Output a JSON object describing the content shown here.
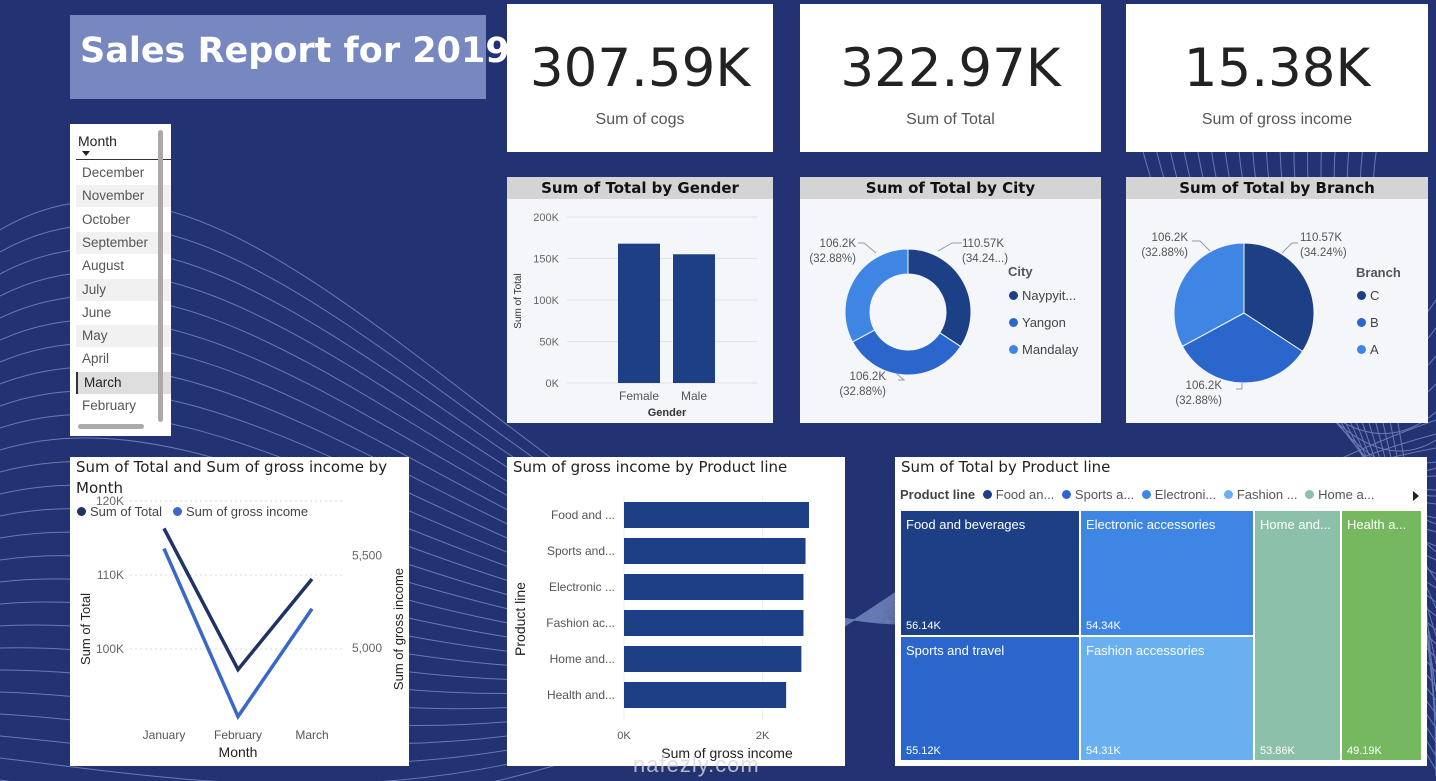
{
  "report": {
    "title": "Sales Report for 2019"
  },
  "kpis": [
    {
      "value": "307.59K",
      "label": "Sum of cogs"
    },
    {
      "value": "322.97K",
      "label": "Sum of Total"
    },
    {
      "value": "15.38K",
      "label": "Sum of gross income"
    }
  ],
  "slicer": {
    "header": "Month",
    "items": [
      "December",
      "November",
      "October",
      "September",
      "August",
      "July",
      "June",
      "May",
      "April",
      "March",
      "February"
    ],
    "selected": "March"
  },
  "gender_chart": {
    "title": "Sum of Total by Gender",
    "ylabel": "Sum of Total",
    "xlabel": "Gender",
    "y_ticks": [
      "200K",
      "150K",
      "100K",
      "50K",
      "0K"
    ],
    "categories": [
      "Female",
      "Male"
    ]
  },
  "city_chart": {
    "title": "Sum of Total by City",
    "legend_title": "City",
    "legend": [
      "Naypyit...",
      "Yangon",
      "Mandalay"
    ],
    "labels": [
      {
        "value": "110.57K",
        "pct": "(34.24...)"
      },
      {
        "value": "106.2K",
        "pct": "(32.88%)"
      },
      {
        "value": "106.2K",
        "pct": "(32.88%)"
      }
    ]
  },
  "branch_chart": {
    "title": "Sum of Total by Branch",
    "legend_title": "Branch",
    "legend": [
      "C",
      "B",
      "A"
    ],
    "labels": [
      {
        "value": "110.57K",
        "pct": "(34.24%)"
      },
      {
        "value": "106.2K",
        "pct": "(32.88%)"
      },
      {
        "value": "106.2K",
        "pct": "(32.88%)"
      }
    ]
  },
  "month_chart": {
    "title_line1": "Sum of Total and Sum of gross income by",
    "title_line2": "Month",
    "legend": [
      "Sum of Total",
      "Sum of gross income"
    ],
    "ylabel_left": "Sum of Total",
    "ylabel_right": "Sum of gross income",
    "xlabel": "Month",
    "left_ticks": [
      "120K",
      "110K",
      "100K"
    ],
    "right_ticks": [
      "5,500",
      "5,000"
    ],
    "x_ticks": [
      "January",
      "February",
      "March"
    ]
  },
  "product_gross_chart": {
    "title": "Sum of gross income by Product line",
    "ylabel": "Product line",
    "xlabel": "Sum of gross income",
    "categories": [
      "Food and ...",
      "Sports and...",
      "Electronic ...",
      "Fashion ac...",
      "Home and...",
      "Health and..."
    ],
    "x_ticks": [
      "0K",
      "2K"
    ]
  },
  "treemap": {
    "title": "Sum of Total by Product line",
    "legend_title": "Product line",
    "legend": [
      "Food an...",
      "Sports a...",
      "Electroni...",
      "Fashion ...",
      "Home a..."
    ],
    "tiles": [
      {
        "name": "Food and beverages",
        "value": "56.14K"
      },
      {
        "name": "Sports and travel",
        "value": "55.12K"
      },
      {
        "name": "Electronic accessories",
        "value": "54.34K"
      },
      {
        "name": "Fashion accessories",
        "value": "54.31K"
      },
      {
        "name": "Home and...",
        "value": "53.86K"
      },
      {
        "name": "Health a...",
        "value": "49.19K"
      }
    ]
  },
  "watermark": {
    "text": "nafezly.com"
  },
  "colors": {
    "background": "#233272",
    "navy": "#1c3f86",
    "mid_blue": "#2b66cc",
    "light_blue": "#3f86e4",
    "sky_blue": "#6ab0f0",
    "teal": "#8cc0aa",
    "green": "#75b860"
  },
  "chart_data": [
    {
      "type": "bar",
      "title": "Sum of Total by Gender",
      "categories": [
        "Female",
        "Male"
      ],
      "values": [
        167.88,
        155.08
      ],
      "ylim": [
        0,
        200
      ],
      "xlabel": "Gender",
      "ylabel": "Sum of Total"
    },
    {
      "type": "pie",
      "title": "Sum of Total by City",
      "variant": "donut",
      "categories": [
        "Naypyitaw",
        "Yangon",
        "Mandalay"
      ],
      "values": [
        110.57,
        106.2,
        106.2
      ]
    },
    {
      "type": "pie",
      "title": "Sum of Total by Branch",
      "categories": [
        "C",
        "B",
        "A"
      ],
      "values": [
        110.57,
        106.2,
        106.2
      ]
    },
    {
      "type": "line",
      "title": "Sum of Total and Sum of gross income by Month",
      "categories": [
        "January",
        "February",
        "March"
      ],
      "series": [
        {
          "name": "Sum of Total",
          "values": [
            116.29,
            97.22,
            109.46
          ],
          "axis": "left"
        },
        {
          "name": "Sum of gross income",
          "values": [
            5537.7,
            4629.5,
            5212.2
          ],
          "axis": "right"
        }
      ],
      "ylim_left": [
        95,
        122
      ],
      "ylim_right": [
        4500,
        5650
      ]
    },
    {
      "type": "bar",
      "orientation": "horizontal",
      "title": "Sum of gross income by Product line",
      "categories": [
        "Food and beverages",
        "Sports and travel",
        "Electronic accessories",
        "Fashion accessories",
        "Home and lifestyle",
        "Health and beauty"
      ],
      "values": [
        2.67,
        2.62,
        2.59,
        2.59,
        2.56,
        2.34
      ],
      "xlim": [
        0,
        2.8
      ]
    },
    {
      "type": "treemap",
      "title": "Sum of Total by Product line",
      "categories": [
        "Food and beverages",
        "Sports and travel",
        "Electronic accessories",
        "Fashion accessories",
        "Home and lifestyle",
        "Health and beauty"
      ],
      "values": [
        56.14,
        55.12,
        54.34,
        54.31,
        53.86,
        49.19
      ]
    }
  ]
}
